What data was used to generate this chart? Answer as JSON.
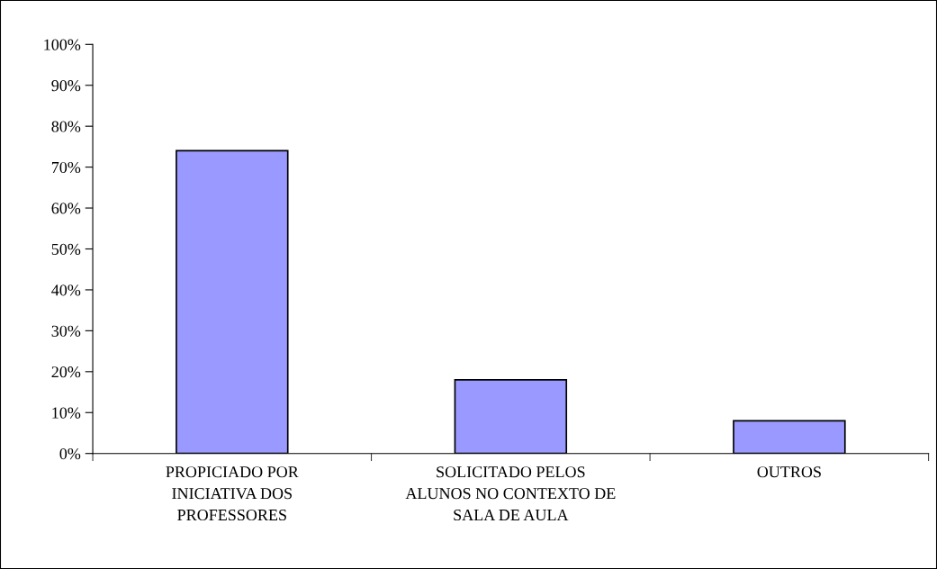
{
  "chart_data": {
    "type": "bar",
    "categories": [
      "PROPICIADO POR\nINICIATIVA DOS\nPROFESSORES",
      "SOLICITADO PELOS\nALUNOS NO CONTEXTO DE\nSALA DE AULA",
      "OUTROS"
    ],
    "values": [
      74,
      18,
      8
    ],
    "color": "#9999ff",
    "ylim": [
      0,
      100
    ],
    "yticks": [
      {
        "value": 0,
        "label": "0%"
      },
      {
        "value": 10,
        "label": "10%"
      },
      {
        "value": 20,
        "label": "20%"
      },
      {
        "value": 30,
        "label": "30%"
      },
      {
        "value": 40,
        "label": "40%"
      },
      {
        "value": 50,
        "label": "50%"
      },
      {
        "value": 60,
        "label": "60%"
      },
      {
        "value": 70,
        "label": "70%"
      },
      {
        "value": 80,
        "label": "80%"
      },
      {
        "value": 90,
        "label": "90%"
      },
      {
        "value": 100,
        "label": "100%"
      }
    ],
    "grid": false,
    "legend": false
  }
}
